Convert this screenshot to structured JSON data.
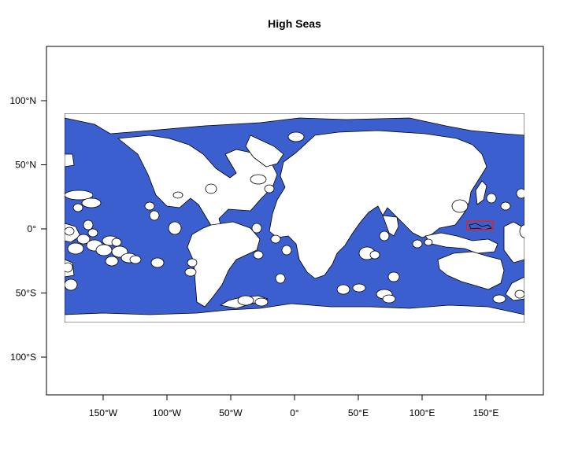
{
  "title": "High Seas",
  "colors": {
    "ocean": "#3b5fcf",
    "land": "#ffffff",
    "outline": "#000000",
    "highlight_box": "#e8221e"
  },
  "axes": {
    "x": {
      "ticks": [
        {
          "value": -150,
          "label": "150°W"
        },
        {
          "value": -100,
          "label": "100°W"
        },
        {
          "value": -50,
          "label": "50°W"
        },
        {
          "value": 0,
          "label": "0°"
        },
        {
          "value": 50,
          "label": "50°E"
        },
        {
          "value": 100,
          "label": "100°E"
        },
        {
          "value": 150,
          "label": "150°E"
        }
      ]
    },
    "y": {
      "ticks": [
        {
          "value": 100,
          "label": "100°N"
        },
        {
          "value": 50,
          "label": "50°N"
        },
        {
          "value": 0,
          "label": "0°"
        },
        {
          "value": -50,
          "label": "50°S"
        },
        {
          "value": -100,
          "label": "100°S"
        }
      ]
    }
  },
  "map": {
    "projection": "equirectangular",
    "fill_meaning": "blue = high seas area; white = land and national jurisdiction areas",
    "highlight": {
      "lon_range": [
        133,
        155
      ],
      "lat_range": [
        0,
        6
      ]
    }
  }
}
